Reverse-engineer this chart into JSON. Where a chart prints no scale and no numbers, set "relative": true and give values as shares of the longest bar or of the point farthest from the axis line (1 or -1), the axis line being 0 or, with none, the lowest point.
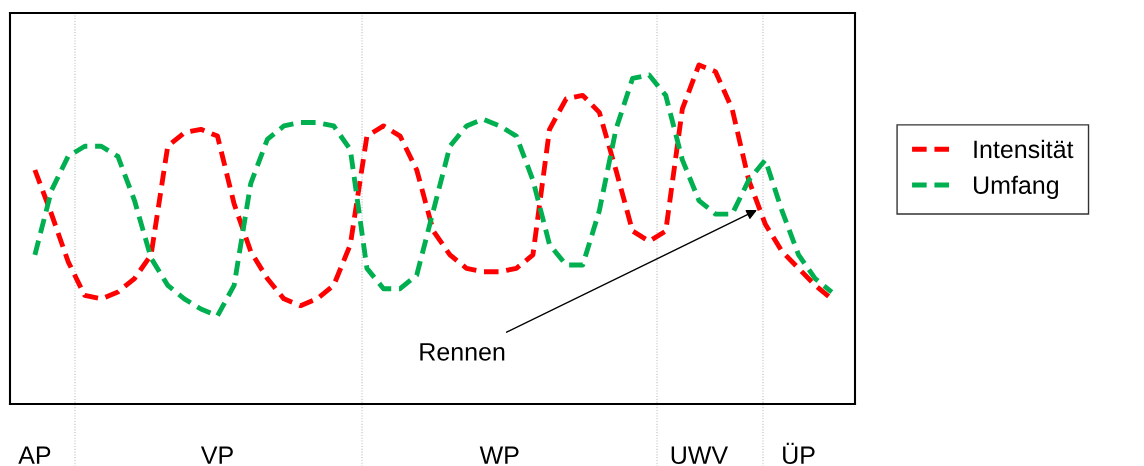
{
  "chart_data": {
    "type": "line",
    "relative": true,
    "line_style": "dashed",
    "marker": "none",
    "grid": false,
    "legend": "right",
    "categories": [
      "AP",
      null,
      null,
      null,
      null,
      null,
      null,
      null,
      null,
      null,
      null,
      "VP",
      null,
      null,
      null,
      null,
      null,
      null,
      null,
      null,
      null,
      null,
      null,
      null,
      null,
      null,
      null,
      null,
      "WP",
      null,
      null,
      null,
      null,
      null,
      null,
      null,
      null,
      null,
      null,
      null,
      "UWV",
      null,
      null,
      null,
      null,
      null,
      "ÜP",
      null,
      null
    ],
    "annotations": [
      "Rennen"
    ],
    "series": [
      {
        "name": "Intensität",
        "color": "#ff0000",
        "values": [
          0.69,
          0.56,
          0.42,
          0.32,
          0.31,
          0.33,
          0.37,
          0.44,
          0.76,
          0.8,
          0.81,
          0.79,
          0.59,
          0.45,
          0.37,
          0.31,
          0.29,
          0.31,
          0.35,
          0.47,
          0.79,
          0.82,
          0.79,
          0.69,
          0.51,
          0.44,
          0.4,
          0.39,
          0.39,
          0.4,
          0.44,
          0.81,
          0.9,
          0.91,
          0.86,
          0.69,
          0.51,
          0.48,
          0.51,
          0.87,
          1.0,
          0.98,
          0.87,
          0.66,
          0.53,
          0.45,
          0.4,
          0.35,
          0.31
        ]
      },
      {
        "name": "Umfang",
        "color": "#00b050",
        "values": [
          0.44,
          0.63,
          0.73,
          0.76,
          0.76,
          0.73,
          0.6,
          0.43,
          0.35,
          0.31,
          0.28,
          0.26,
          0.35,
          0.65,
          0.78,
          0.82,
          0.83,
          0.83,
          0.82,
          0.75,
          0.4,
          0.34,
          0.34,
          0.38,
          0.57,
          0.76,
          0.82,
          0.84,
          0.82,
          0.79,
          0.66,
          0.47,
          0.41,
          0.41,
          0.57,
          0.81,
          0.96,
          0.97,
          0.91,
          0.72,
          0.6,
          0.56,
          0.56,
          0.66,
          0.72,
          0.57,
          0.44,
          0.37,
          0.33
        ]
      }
    ]
  }
}
